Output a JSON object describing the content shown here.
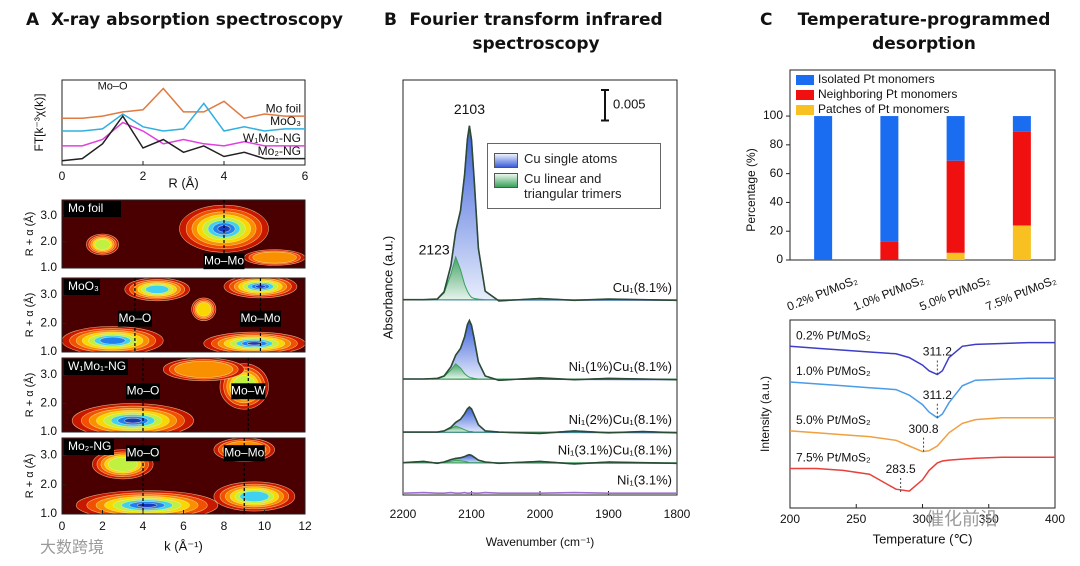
{
  "chart_data": [
    {
      "type": "line",
      "panel": "A",
      "title": "X-ray absorption spectroscopy",
      "ylabel": "FT[k⁻³χ(k)]",
      "xlabel": "R (Å)",
      "xlim": [
        0,
        6
      ],
      "ylim": [
        0,
        4
      ],
      "xticks": [
        0,
        2,
        4,
        6
      ],
      "x": [
        0,
        0.5,
        1,
        1.5,
        2,
        2.5,
        3,
        3.5,
        4,
        4.5,
        5,
        5.5,
        6
      ],
      "annotations": [
        {
          "text": "Mo–O",
          "x": 1.25,
          "y": 3.7
        }
      ],
      "series": [
        {
          "name": "Mo foil",
          "color": "#e07a40",
          "values": [
            2.2,
            2.2,
            2.3,
            2.5,
            2.6,
            3.6,
            2.5,
            2.5,
            3.0,
            2.2,
            2.4,
            2.3,
            2.3
          ]
        },
        {
          "name": "MoO₃",
          "color": "#30b0e0",
          "values": [
            1.6,
            1.6,
            1.7,
            2.4,
            1.8,
            1.6,
            1.7,
            2.9,
            1.6,
            1.8,
            1.6,
            1.7,
            1.7
          ]
        },
        {
          "name": "W₁Mo₁-NG",
          "color": "#e040e0",
          "values": [
            0.9,
            0.9,
            1.2,
            2.0,
            1.6,
            1.0,
            1.2,
            1.0,
            0.9,
            1.1,
            0.9,
            0.9,
            0.9
          ]
        },
        {
          "name": "Mo₂-NG",
          "color": "#222222",
          "values": [
            0.2,
            0.3,
            1.0,
            2.3,
            0.8,
            1.2,
            0.6,
            0.9,
            0.4,
            0.6,
            0.3,
            0.3,
            0.3
          ]
        }
      ]
    },
    {
      "type": "contour",
      "xlabel": "k (Å⁻¹)",
      "ylabel": "R + α (Å)",
      "xlim": [
        0,
        12
      ],
      "ylim": [
        1,
        3.6
      ],
      "xticks": [
        0,
        2,
        4,
        6,
        8,
        10,
        12
      ],
      "yticks": [
        {
          "value": 1,
          "label": "1.0"
        },
        {
          "value": 2,
          "label": "2.0"
        },
        {
          "value": 3,
          "label": "3.0"
        }
      ],
      "panels": [
        {
          "name": "Mo foil",
          "peaks": [
            {
              "x": 8,
              "y": 2.5,
              "sx": 2.2,
              "sy": 0.9,
              "level": 8
            },
            {
              "x": 2,
              "y": 1.9,
              "sx": 0.8,
              "sy": 0.4,
              "level": 5
            },
            {
              "x": 10.5,
              "y": 1.4,
              "sx": 1.5,
              "sy": 0.3,
              "level": 3
            }
          ],
          "markers": [
            {
              "text": "Mo–Mo",
              "x": 8
            }
          ]
        },
        {
          "name": "MoO₃",
          "peaks": [
            {
              "x": 4.7,
              "y": 3.2,
              "sx": 1.6,
              "sy": 0.4,
              "level": 6
            },
            {
              "x": 9.8,
              "y": 3.3,
              "sx": 1.8,
              "sy": 0.4,
              "level": 8
            },
            {
              "x": 2.5,
              "y": 1.4,
              "sx": 2.5,
              "sy": 0.5,
              "level": 7
            },
            {
              "x": 9.5,
              "y": 1.3,
              "sx": 2.5,
              "sy": 0.4,
              "level": 8
            },
            {
              "x": 7,
              "y": 2.5,
              "sx": 0.6,
              "sy": 0.4,
              "level": 4
            }
          ],
          "markers": [
            {
              "text": "Mo–O",
              "x": 3.6
            },
            {
              "text": "Mo–Mo",
              "x": 9.8
            }
          ]
        },
        {
          "name": "W₁Mo₁-NG",
          "peaks": [
            {
              "x": 3.5,
              "y": 1.4,
              "sx": 3,
              "sy": 0.6,
              "level": 8
            },
            {
              "x": 9,
              "y": 2.6,
              "sx": 1.2,
              "sy": 0.8,
              "level": 5
            },
            {
              "x": 7,
              "y": 3.2,
              "sx": 2,
              "sy": 0.4,
              "level": 3
            }
          ],
          "markers": [
            {
              "text": "Mo–O",
              "x": 4
            },
            {
              "text": "Mo–W",
              "x": 9.2
            }
          ]
        },
        {
          "name": "Mo₂-NG",
          "peaks": [
            {
              "x": 4.2,
              "y": 1.3,
              "sx": 3.5,
              "sy": 0.5,
              "level": 8
            },
            {
              "x": 9.5,
              "y": 1.6,
              "sx": 2,
              "sy": 0.5,
              "level": 6
            },
            {
              "x": 3,
              "y": 2.7,
              "sx": 1.5,
              "sy": 0.5,
              "level": 5
            },
            {
              "x": 9,
              "y": 3.2,
              "sx": 1.5,
              "sy": 0.4,
              "level": 3
            }
          ],
          "markers": [
            {
              "text": "Mo–O",
              "x": 4
            },
            {
              "text": "Mo–Mo",
              "x": 9
            }
          ]
        }
      ]
    },
    {
      "type": "spectra",
      "panel": "B",
      "title": "Fourier transform infrared spectroscopy",
      "xlabel": "Wavenumber (cm⁻¹)",
      "ylabel": "Absorbance (a.u.)",
      "xlim": [
        2200,
        1800
      ],
      "ylim": [
        0,
        0.068
      ],
      "xticks": [
        2200,
        2100,
        2000,
        1900,
        1800
      ],
      "scale_bar": 0.005,
      "legend": [
        {
          "name": "Cu single atoms",
          "color": "#3b5fd9"
        },
        {
          "name": "Cu linear and triangular trimers",
          "color": "#3aa05a"
        }
      ],
      "annotations": [
        {
          "text": "2103",
          "x": 2103,
          "y": 0.063
        },
        {
          "text": "2123",
          "x": 2123,
          "y": 0.04
        }
      ],
      "x": [
        2200,
        2170,
        2150,
        2140,
        2130,
        2123,
        2116,
        2110,
        2106,
        2103,
        2100,
        2096,
        2090,
        2080,
        2060,
        2000,
        1950,
        1900,
        1850,
        1800
      ],
      "series": [
        {
          "name": "Cu₁(8.1%)",
          "color": "#2d4a35",
          "values": [
            0.032,
            0.032,
            0.0321,
            0.0333,
            0.0376,
            0.0432,
            0.0466,
            0.0525,
            0.0583,
            0.0605,
            0.0582,
            0.0516,
            0.0404,
            0.0334,
            0.0318,
            0.0322,
            0.0319,
            0.0321,
            0.032,
            0.0319
          ],
          "fit_values": [
            0.032,
            0.032,
            0.0321,
            0.0331,
            0.0362,
            0.039,
            0.0369,
            0.0345,
            0.0334,
            0.0328,
            0.0324,
            0.0322,
            0.0321,
            0.032,
            0.032,
            0.032,
            0.032,
            0.032,
            0.032,
            0.032
          ]
        },
        {
          "name": "Ni₁(1%)Cu₁(8.1%)",
          "color": "#2d4a35",
          "values": [
            0.019,
            0.019,
            0.0191,
            0.0195,
            0.021,
            0.0229,
            0.024,
            0.0259,
            0.0279,
            0.0286,
            0.0278,
            0.0256,
            0.0218,
            0.0195,
            0.0188,
            0.0192,
            0.0189,
            0.0191,
            0.019,
            0.0189
          ],
          "fit_values": [
            0.019,
            0.019,
            0.0191,
            0.0194,
            0.0205,
            0.0215,
            0.0208,
            0.0199,
            0.0195,
            0.0193,
            0.0192,
            0.0191,
            0.019,
            0.019,
            0.019,
            0.019,
            0.019,
            0.019,
            0.019,
            0.019
          ]
        },
        {
          "name": "Ni₁(2%)Cu₁(8.1%)",
          "color": "#2d4a35",
          "values": [
            0.0103,
            0.0103,
            0.0103,
            0.0105,
            0.0111,
            0.0119,
            0.0124,
            0.0133,
            0.0141,
            0.0144,
            0.0141,
            0.0131,
            0.0115,
            0.0105,
            0.0103,
            0.0101,
            0.0105,
            0.0102,
            0.0104,
            0.0102
          ],
          "fit_values": [
            0.0103,
            0.0103,
            0.0103,
            0.0105,
            0.0109,
            0.0113,
            0.011,
            0.0107,
            0.0105,
            0.0104,
            0.0104,
            0.0103,
            0.0103,
            0.0103,
            0.0103,
            0.0103,
            0.0103,
            0.0103,
            0.0103,
            0.0103
          ]
        },
        {
          "name": "Ni₁(3.1%)Cu₁(8.1%)",
          "color": "#2d4a35",
          "values": [
            0.0053,
            0.0055,
            0.0052,
            0.0054,
            0.0058,
            0.006,
            0.0061,
            0.0063,
            0.0065,
            0.0066,
            0.0065,
            0.0062,
            0.0057,
            0.0054,
            0.0052,
            0.0055,
            0.0051,
            0.0054,
            0.0053,
            0.0052
          ],
          "fit_values": [
            0.0053,
            0.0053,
            0.0053,
            0.0054,
            0.0055,
            0.0057,
            0.0056,
            0.0055,
            0.0054,
            0.0053,
            0.0053,
            0.0053,
            0.0053,
            0.0053,
            0.0053,
            0.0053,
            0.0053,
            0.0053,
            0.0053,
            0.0053
          ]
        },
        {
          "name": "Ni₁(3.1%)",
          "color": "#a070d0",
          "values": [
            0.0003,
            0.0004,
            0.0003,
            0.0003,
            0.0004,
            0.0003,
            0.0003,
            0.0004,
            0.0003,
            0.0003,
            0.0004,
            0.0003,
            0.0003,
            0.0004,
            0.0003,
            0.0003,
            0.0004,
            0.0003,
            0.0003,
            0.0003
          ]
        }
      ]
    },
    {
      "type": "bar",
      "panel": "C",
      "title": "Temperature-programmed desorption",
      "ylabel": "Percentage (%)",
      "ylim": [
        0,
        132
      ],
      "yticks": [
        0,
        20,
        40,
        60,
        80,
        100
      ],
      "categories": [
        "0.2% Pt/MoS₂",
        "1.0% Pt/MoS₂",
        "5.0% Pt/MoS₂",
        "7.5% Pt/MoS₂"
      ],
      "series": [
        {
          "name": "Isolated Pt monomers",
          "color": "#1a6cf0",
          "values": [
            100,
            87,
            31,
            11
          ]
        },
        {
          "name": "Neighboring Pt monomers",
          "color": "#f01010",
          "values": [
            0,
            13,
            64,
            65
          ]
        },
        {
          "name": "Patches of Pt monomers",
          "color": "#f8c020",
          "values": [
            0,
            0,
            5,
            24
          ]
        }
      ]
    },
    {
      "type": "line",
      "xlabel": "Temperature (℃)",
      "ylabel": "Intensity (a.u.)",
      "xlim": [
        200,
        400
      ],
      "ylim": [
        0,
        10
      ],
      "xticks": [
        200,
        250,
        300,
        350,
        400
      ],
      "x": [
        200,
        220,
        240,
        260,
        280,
        290,
        300,
        305,
        311.2,
        315,
        320,
        330,
        340,
        360,
        380,
        400
      ],
      "annotations": [
        {
          "text": "311.2",
          "x": 311.2,
          "y": 7.1
        },
        {
          "text": "311.2",
          "x": 311.2,
          "y": 4.8
        },
        {
          "text": "300.8",
          "x": 300.8,
          "y": 3.0
        },
        {
          "text": "283.5",
          "x": 283.5,
          "y": 0.85
        }
      ],
      "series": [
        {
          "name": "0.2% Pt/MoS₂",
          "color": "#3d3dc8",
          "values": [
            8.6,
            8.5,
            8.4,
            8.3,
            8.2,
            8.0,
            7.6,
            7.3,
            7.1,
            7.3,
            8.0,
            8.6,
            8.7,
            8.75,
            8.8,
            8.8
          ]
        },
        {
          "name": "1.0% Pt/MoS₂",
          "color": "#4a9be8",
          "values": [
            6.7,
            6.6,
            6.5,
            6.4,
            6.3,
            6.0,
            5.5,
            5.1,
            4.8,
            5.0,
            5.6,
            6.5,
            6.8,
            6.85,
            6.9,
            6.9
          ]
        },
        {
          "name": "5.0% Pt/MoS₂",
          "color": "#f0a040",
          "values": [
            4.1,
            4.0,
            3.9,
            3.8,
            3.6,
            3.3,
            3.0,
            3.05,
            3.3,
            3.6,
            4.0,
            4.5,
            4.7,
            4.8,
            4.8,
            4.8
          ]
        },
        {
          "name": "7.5% Pt/MoS₂",
          "color": "#e8403a",
          "values": [
            2.1,
            2.1,
            2.0,
            1.8,
            1.0,
            0.9,
            1.5,
            2.0,
            2.4,
            2.5,
            2.55,
            2.6,
            2.65,
            2.7,
            2.7,
            2.7
          ]
        }
      ]
    }
  ],
  "watermarks": [
    "大数跨境",
    "催化前沿"
  ]
}
